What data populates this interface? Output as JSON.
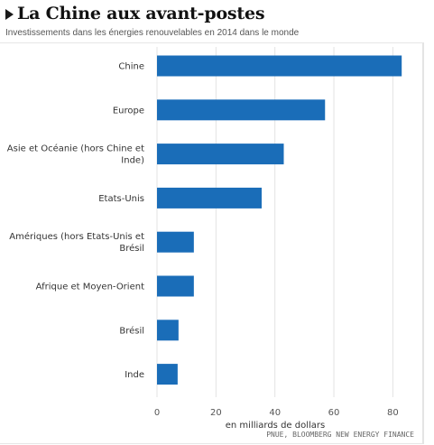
{
  "header": {
    "title": "La Chine aux avant-postes",
    "subtitle": "Investissements dans les énergies renouvelables en 2014 dans le monde"
  },
  "chart_data": {
    "type": "bar",
    "orientation": "horizontal",
    "categories": [
      [
        "Chine"
      ],
      [
        "Europe"
      ],
      [
        "Asie et Océanie (hors Chine et",
        "Inde)"
      ],
      [
        "Etats-Unis"
      ],
      [
        "Amériques (hors Etats-Unis et",
        "Brésil"
      ],
      [
        "Afrique et Moyen-Orient"
      ],
      [
        "Brésil"
      ],
      [
        "Inde"
      ]
    ],
    "values": [
      83,
      57,
      43,
      35.5,
      12.5,
      12.5,
      7.3,
      7
    ],
    "xlim": [
      0,
      86
    ],
    "xticks": [
      0,
      20,
      40,
      60,
      80
    ],
    "xlabel": "en milliards de dollars",
    "grid": true,
    "bar_color": "#1a6db8",
    "grid_color": "#e3e3e3",
    "source": "PNUE, BLOOMBERG NEW ENERGY FINANCE"
  }
}
